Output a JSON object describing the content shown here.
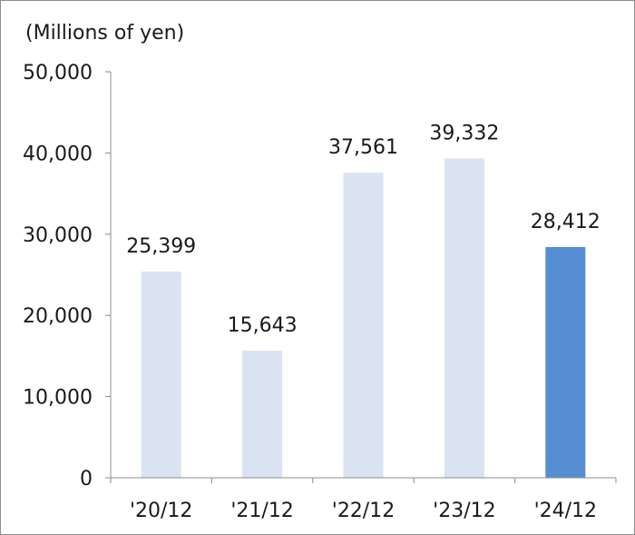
{
  "chart_data": {
    "type": "bar",
    "unit_label": "(Millions of yen)",
    "categories": [
      "'20/12",
      "'21/12",
      "'22/12",
      "'23/12",
      "'24/12"
    ],
    "values": [
      25399,
      15643,
      37561,
      39332,
      28412
    ],
    "data_labels": [
      "25,399",
      "15,643",
      "37,561",
      "39,332",
      "28,412"
    ],
    "y_ticks": [
      "0",
      "10,000",
      "20,000",
      "30,000",
      "40,000",
      "50,000"
    ],
    "ylim": [
      0,
      50000
    ],
    "grid": false,
    "colors": {
      "default_bar": "#dae3f1",
      "highlight_bar": "#568ed4",
      "axis": "#8c8c8c"
    },
    "highlight_index": 4
  }
}
